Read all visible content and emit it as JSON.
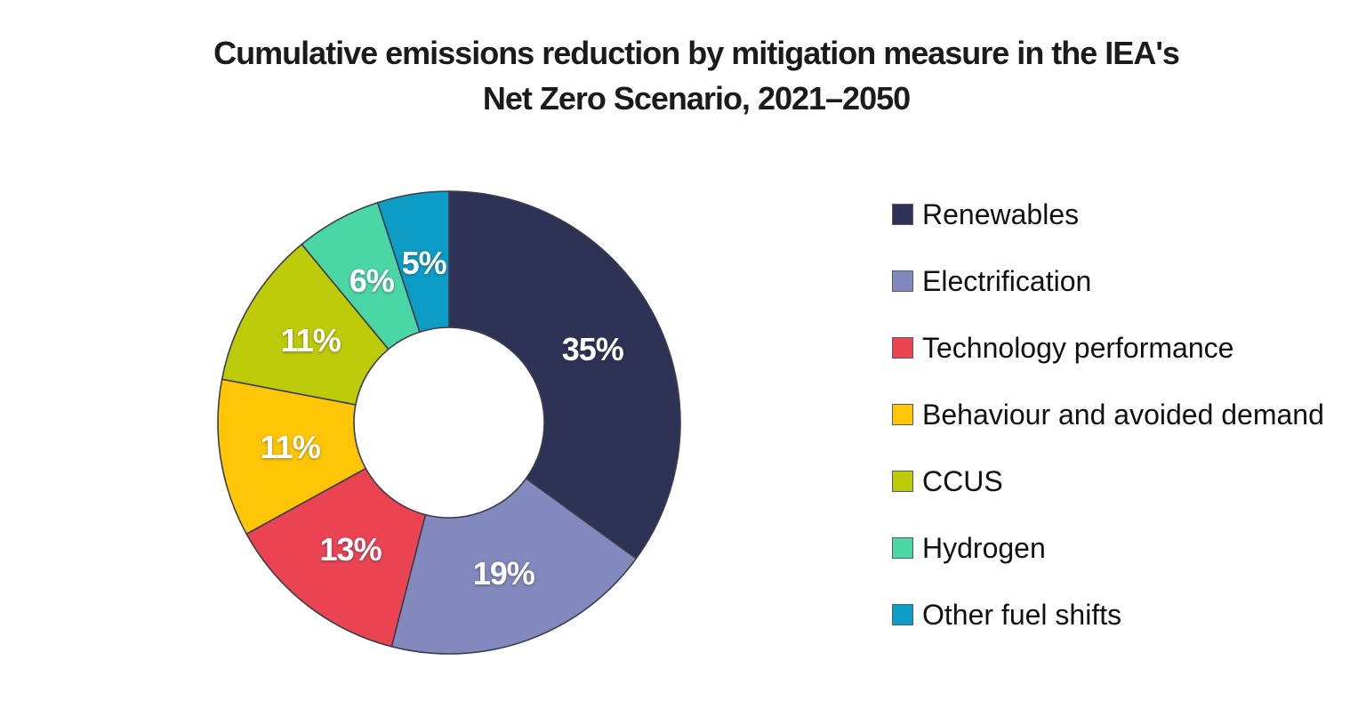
{
  "title": {
    "line1": "Cumulative emissions reduction by mitigation measure in the IEA's",
    "line2": "Net Zero Scenario, 2021–2050"
  },
  "chart_data": {
    "type": "pie",
    "subtype": "donut",
    "title": "Cumulative emissions reduction by mitigation measure in the IEA's Net Zero Scenario, 2021–2050",
    "unit": "percent",
    "start_angle": "12 o'clock",
    "direction": "clockwise",
    "legend_position": "right",
    "grid": false,
    "series": [
      {
        "label": "Renewables",
        "value": 35,
        "data_label": "35%",
        "color": "#2E3356"
      },
      {
        "label": "Electrification",
        "value": 19,
        "data_label": "19%",
        "color": "#8289BD"
      },
      {
        "label": "Technology performance",
        "value": 13,
        "data_label": "13%",
        "color": "#EA4453"
      },
      {
        "label": "Behaviour and avoided demand",
        "value": 11,
        "data_label": "11%",
        "color": "#FFC608"
      },
      {
        "label": "CCUS",
        "value": 11,
        "data_label": "11%",
        "color": "#BECB0A"
      },
      {
        "label": "Hydrogen",
        "value": 6,
        "data_label": "6%",
        "color": "#4BD6A6"
      },
      {
        "label": "Other fuel shifts",
        "value": 5,
        "data_label": "5%",
        "color": "#0D9CC6"
      }
    ]
  },
  "style": {
    "background": "#FFFFFF",
    "title_color": "#1B1B1B",
    "slice_stroke": "#3C3C4E",
    "slice_label_color": "#FFFFFF",
    "legend_text_color": "#111111"
  }
}
